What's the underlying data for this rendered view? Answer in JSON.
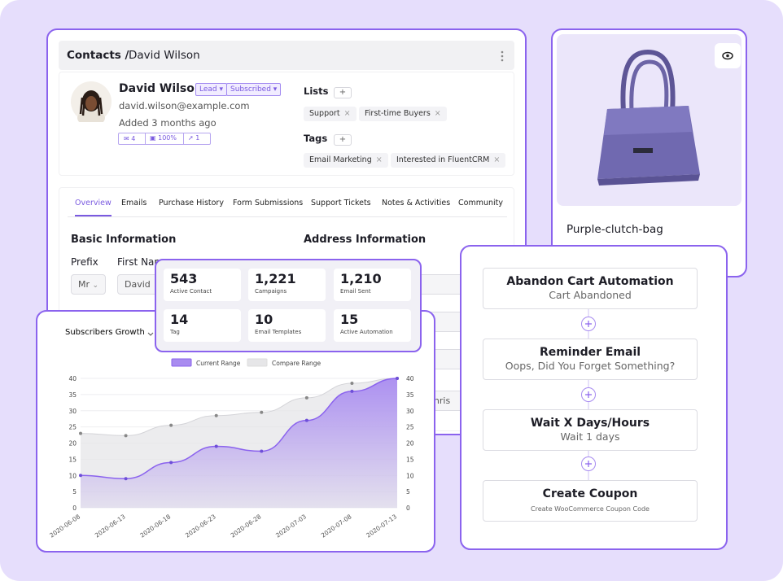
{
  "contact": {
    "breadcrumb": "Contacts /",
    "name": "David Wilson",
    "profile_name": "David Wilson",
    "badges": [
      "Lead",
      "Subscribed"
    ],
    "email": "david.wilson@example.com",
    "added": "Added 3 months ago",
    "counters": [
      "4",
      "100%",
      "1"
    ],
    "lists_label": "Lists",
    "lists": [
      "Support",
      "First-time Buyers"
    ],
    "tags_label": "Tags",
    "tags": [
      "Email Marketing",
      "Interested in FluentCRM"
    ],
    "tabs": [
      "Overview",
      "Emails",
      "Purchase History",
      "Form Submissions",
      "Support Tickets",
      "Notes & Activities",
      "Community"
    ],
    "basic_info": "Basic Information",
    "address_info": "Address Information",
    "prefix_label": "Prefix",
    "first_name_label": "First Name",
    "prefix_value": "Mr",
    "first_name_value": "David",
    "partial_field": "s Chris"
  },
  "product": {
    "name": "Purple-clutch-bag"
  },
  "stats": [
    {
      "value": "543",
      "label": "Active Contact"
    },
    {
      "value": "1,221",
      "label": "Campaigns"
    },
    {
      "value": "1,210",
      "label": "Email Sent"
    },
    {
      "value": "14",
      "label": "Tag"
    },
    {
      "value": "10",
      "label": "Email Templates"
    },
    {
      "value": "15",
      "label": "Active Automation"
    }
  ],
  "chart_data": {
    "type": "area",
    "title": "Subscribers Growth",
    "x": [
      "2020-06-08",
      "2020-06-13",
      "2020-06-18",
      "2020-06-23",
      "2020-06-28",
      "2020-07-03",
      "2020-07-08",
      "2020-07-13"
    ],
    "series": [
      {
        "name": "Current Range",
        "color": "#a98cf0",
        "values": [
          10,
          9,
          14,
          19,
          17.5,
          27,
          36,
          40
        ]
      },
      {
        "name": "Compare Range",
        "color": "#e6e6e8",
        "values": [
          23,
          22.3,
          25.5,
          28.5,
          29.5,
          34,
          38.5,
          40
        ]
      }
    ],
    "ylim": [
      0,
      40
    ],
    "yticks": [
      0,
      5,
      10,
      15,
      20,
      25,
      30,
      35,
      40
    ],
    "y2lim": [
      0,
      40
    ],
    "y2ticks": [
      0,
      5,
      10,
      15,
      20,
      25,
      30,
      35,
      40
    ],
    "grid": true,
    "legend": "top"
  },
  "automation": {
    "steps": [
      {
        "title": "Abandon Cart Automation",
        "subtitle": "Cart Abandoned"
      },
      {
        "title": "Reminder Email",
        "subtitle": "Oops, Did You Forget Something?"
      },
      {
        "title": "Wait X Days/Hours",
        "subtitle": "Wait 1 days"
      },
      {
        "title": "Create Coupon",
        "subtitle": "Create WooCommerce Coupon Code"
      }
    ]
  }
}
